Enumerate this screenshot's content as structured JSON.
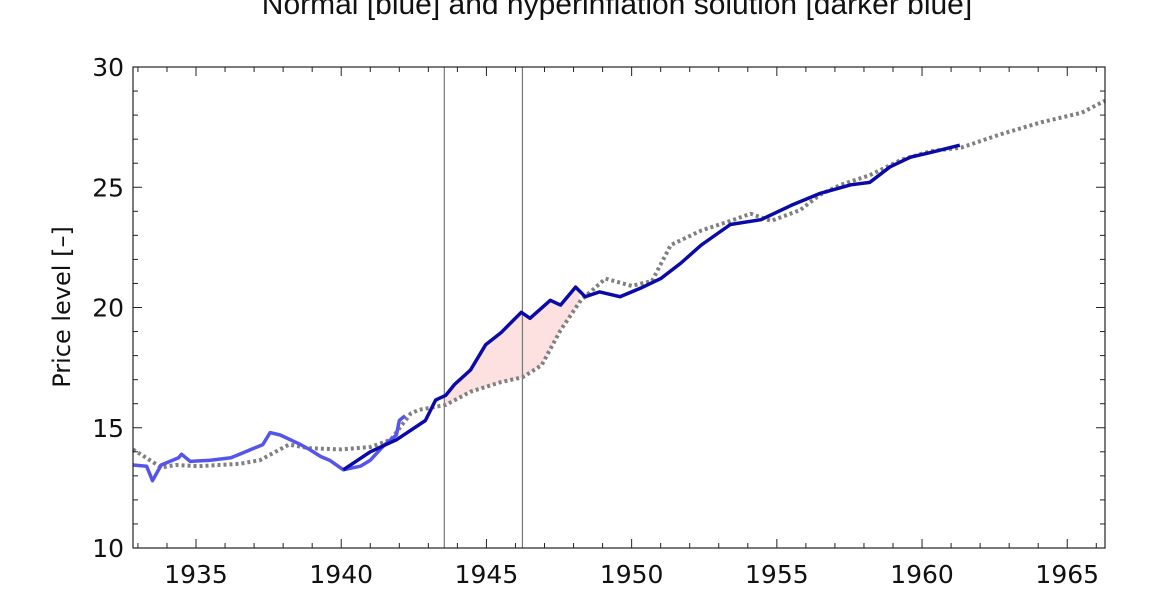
{
  "chart_data": {
    "type": "line",
    "title": "Normal [blue] and hyperinflation solution [darker blue]",
    "xlabel": "",
    "ylabel": "Price level [–]",
    "xlim": [
      1932.83,
      1966.3
    ],
    "ylim": [
      10,
      30
    ],
    "xticks": [
      1935,
      1940,
      1945,
      1950,
      1955,
      1960,
      1965
    ],
    "yticks": [
      10,
      15,
      20,
      25,
      30
    ],
    "grid": false,
    "vertical_markers": [
      1943.55,
      1946.24
    ],
    "shaded_between": {
      "series": [
        "hyperinflation",
        "reference"
      ],
      "x_range": [
        1943.55,
        1948.2
      ],
      "color": "#fde0e0"
    },
    "series": [
      {
        "key": "reference",
        "style": "dotted",
        "color": "#808080",
        "x": [
          1932.83,
          1933.8,
          1934.3,
          1935.1,
          1936.5,
          1937.2,
          1938.2,
          1938.9,
          1940.0,
          1941.0,
          1941.7,
          1942.4,
          1942.7,
          1943.6,
          1944.45,
          1945.5,
          1946.25,
          1946.9,
          1947.55,
          1948.25,
          1949.1,
          1950.0,
          1950.7,
          1951.35,
          1952.4,
          1953.4,
          1954.1,
          1954.8,
          1955.8,
          1956.5,
          1957.2,
          1958.2,
          1959.3,
          1960.3,
          1961.35,
          1962.7,
          1964.1,
          1965.5,
          1966.3
        ],
        "y": [
          14.1,
          13.35,
          13.45,
          13.4,
          13.5,
          13.65,
          14.3,
          14.15,
          14.1,
          14.2,
          14.5,
          15.6,
          15.75,
          15.95,
          16.5,
          16.9,
          17.1,
          17.6,
          19.05,
          20.3,
          21.2,
          20.9,
          21.1,
          22.6,
          23.2,
          23.6,
          23.9,
          23.6,
          24.05,
          24.7,
          25.1,
          25.5,
          26.15,
          26.5,
          26.65,
          27.2,
          27.7,
          28.1,
          28.6
        ]
      },
      {
        "key": "normal",
        "style": "solid",
        "color": "#5555ee",
        "x": [
          1932.83,
          1933.3,
          1933.5,
          1933.8,
          1934.4,
          1934.5,
          1934.8,
          1935.5,
          1936.2,
          1936.5,
          1936.9,
          1937.3,
          1937.55,
          1937.9,
          1938.6,
          1938.9,
          1939.3,
          1939.6,
          1940.07,
          1940.66,
          1941.0,
          1941.5,
          1941.9,
          1942.0,
          1942.2
        ],
        "y": [
          13.45,
          13.4,
          12.8,
          13.45,
          13.75,
          13.9,
          13.6,
          13.65,
          13.75,
          13.9,
          14.1,
          14.3,
          14.8,
          14.7,
          14.3,
          14.1,
          13.8,
          13.65,
          13.25,
          13.4,
          13.65,
          14.3,
          14.7,
          15.3,
          15.5
        ]
      },
      {
        "key": "hyperinflation",
        "style": "solid",
        "color": "#0a0aa8",
        "x": [
          1940.07,
          1941.0,
          1941.9,
          1942.4,
          1942.9,
          1943.25,
          1943.6,
          1943.9,
          1944.45,
          1944.97,
          1945.5,
          1946.2,
          1946.5,
          1947.2,
          1947.55,
          1948.07,
          1948.4,
          1948.9,
          1949.6,
          1950.3,
          1951.0,
          1951.7,
          1952.4,
          1953.4,
          1954.45,
          1955.5,
          1956.5,
          1957.55,
          1958.2,
          1958.9,
          1959.6,
          1960.3,
          1961.3
        ],
        "y": [
          13.25,
          14.0,
          14.5,
          14.9,
          15.3,
          16.15,
          16.35,
          16.8,
          17.4,
          18.45,
          18.95,
          19.8,
          19.55,
          20.3,
          20.1,
          20.85,
          20.45,
          20.65,
          20.45,
          20.8,
          21.2,
          21.85,
          22.6,
          23.45,
          23.65,
          24.25,
          24.75,
          25.1,
          25.2,
          25.85,
          26.25,
          26.45,
          26.75
        ]
      }
    ]
  }
}
